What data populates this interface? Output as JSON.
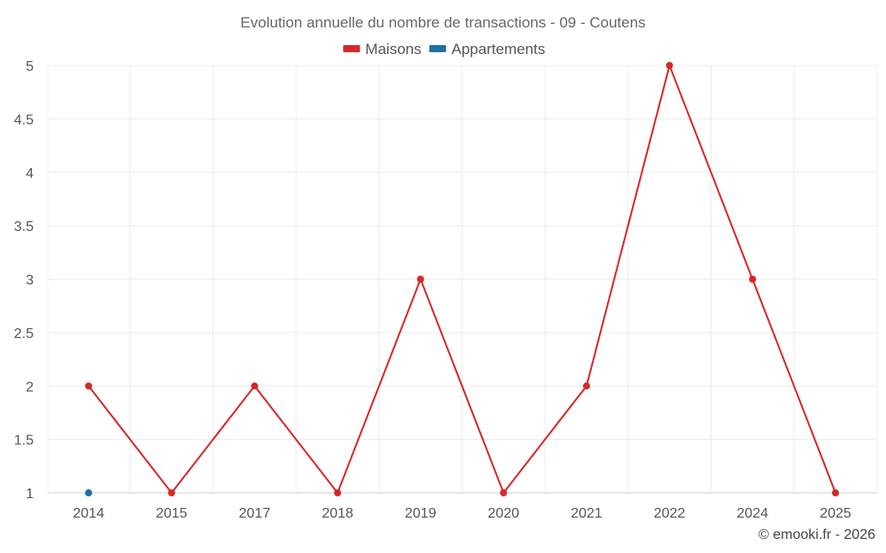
{
  "chart_data": {
    "type": "line",
    "title": "Evolution annuelle du nombre de transactions - 09 - Coutens",
    "categories": [
      "2014",
      "2015",
      "2017",
      "2018",
      "2019",
      "2020",
      "2021",
      "2022",
      "2024",
      "2025"
    ],
    "ylim": [
      1,
      5
    ],
    "y_ticks": [
      "1",
      "1.5",
      "2",
      "2.5",
      "3",
      "3.5",
      "4",
      "4.5",
      "5"
    ],
    "grid": true,
    "legend_position": "top-center",
    "series": [
      {
        "name": "Maisons",
        "color": "#d62728",
        "values": [
          2,
          1,
          2,
          1,
          3,
          1,
          2,
          5,
          3,
          1
        ]
      },
      {
        "name": "Appartements",
        "color": "#1f6fa8",
        "values": [
          1,
          null,
          null,
          null,
          null,
          null,
          null,
          null,
          null,
          null
        ]
      }
    ],
    "credit": "© emooki.fr - 2026"
  }
}
